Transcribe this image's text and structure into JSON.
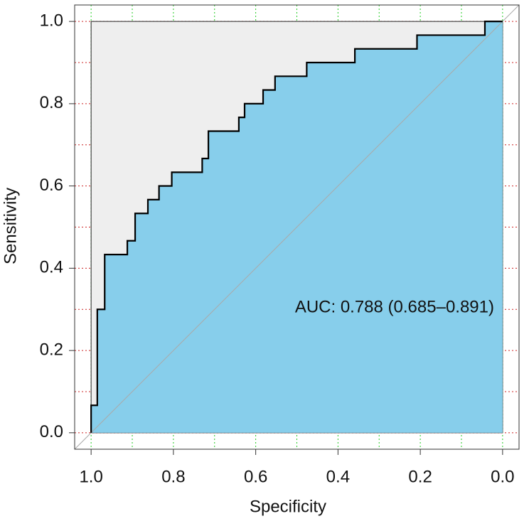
{
  "chart_data": {
    "type": "roc",
    "x_label": "Specificity",
    "y_label": "Sensitivity",
    "annotation": "AUC: 0.788 (0.685–0.891)",
    "x": [
      1,
      1,
      0.985,
      0.985,
      0.967,
      0.967,
      0.912,
      0.912,
      0.893,
      0.893,
      0.862,
      0.862,
      0.835,
      0.835,
      0.804,
      0.804,
      0.73,
      0.73,
      0.715,
      0.715,
      0.641,
      0.641,
      0.627,
      0.627,
      0.582,
      0.582,
      0.553,
      0.553,
      0.476,
      0.476,
      0.359,
      0.359,
      0.208,
      0.208,
      0.043,
      0.043,
      0
    ],
    "values": [
      0,
      0.0667,
      0.0667,
      0.3,
      0.3,
      0.4333,
      0.4333,
      0.4667,
      0.4667,
      0.5333,
      0.5333,
      0.5667,
      0.5667,
      0.6,
      0.6,
      0.6333,
      0.6333,
      0.6667,
      0.6667,
      0.7333,
      0.7333,
      0.7667,
      0.7667,
      0.8,
      0.8,
      0.8333,
      0.8333,
      0.8667,
      0.8667,
      0.9,
      0.9,
      0.9333,
      0.9333,
      0.9667,
      0.9667,
      1,
      1
    ],
    "color": "#87ceeb",
    "background_color": "#eeeeee",
    "xlim": [
      1.04,
      -0.04
    ],
    "ylim": [
      -0.04,
      1.04
    ],
    "xticks": [
      {
        "value": 1,
        "label": "1.0"
      },
      {
        "value": 0.8,
        "label": "0.8"
      },
      {
        "value": 0.6,
        "label": "0.6"
      },
      {
        "value": 0.4,
        "label": "0.4"
      },
      {
        "value": 0.2,
        "label": "0.2"
      },
      {
        "value": 0,
        "label": "0.0"
      }
    ],
    "yticks": [
      {
        "value": 0,
        "label": "0.0"
      },
      {
        "value": 0.2,
        "label": "0.2"
      },
      {
        "value": 0.4,
        "label": "0.4"
      },
      {
        "value": 0.6,
        "label": "0.6"
      },
      {
        "value": 0.8,
        "label": "0.8"
      },
      {
        "value": 1,
        "label": "1.0"
      }
    ],
    "xgrid": [
      0,
      0.1,
      0.2,
      0.3,
      0.4,
      0.5,
      0.6,
      0.7,
      0.8,
      0.9,
      1
    ],
    "xgrid_color": "#22cc22",
    "ygrid": [
      0,
      0.1,
      0.2,
      0.3,
      0.4,
      0.5,
      0.6,
      0.7,
      0.8,
      0.9,
      1
    ],
    "ygrid_color": "#cc2222"
  }
}
